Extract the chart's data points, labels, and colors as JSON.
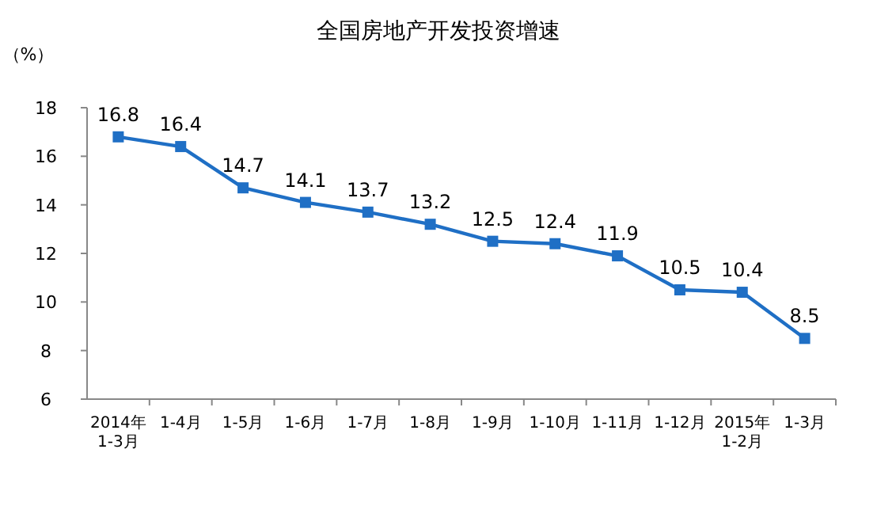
{
  "chart_data": {
    "type": "line",
    "title": "全国房地产开发投资增速",
    "ylabel": "（%）",
    "categories": [
      "2014年\n1-3月",
      "1-4月",
      "1-5月",
      "1-6月",
      "1-7月",
      "1-8月",
      "1-9月",
      "1-10月",
      "1-11月",
      "1-12月",
      "2015年\n1-2月",
      "1-3月"
    ],
    "series": [
      {
        "color": "#1f6fc5",
        "values": [
          16.8,
          16.4,
          14.7,
          14.1,
          13.7,
          13.2,
          12.5,
          12.4,
          11.9,
          10.5,
          10.4,
          8.5
        ]
      }
    ],
    "ylim": [
      6,
      18
    ],
    "yticks": [
      6,
      8,
      10,
      12,
      14,
      16,
      18
    ],
    "grid": false,
    "marker": "square",
    "line_style": "solid",
    "data_labels": true
  }
}
